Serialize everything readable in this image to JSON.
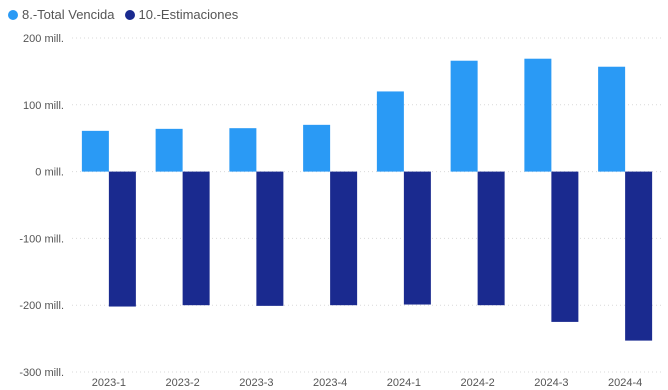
{
  "chart_data": {
    "type": "bar",
    "categories": [
      "2023-1",
      "2023-2",
      "2023-3",
      "2023-4",
      "2024-1",
      "2024-2",
      "2024-3",
      "2024-4"
    ],
    "series": [
      {
        "name": "8.-Total Vencida",
        "color": "#2a9af5",
        "values": [
          61,
          64,
          65,
          70,
          120,
          166,
          169,
          157
        ]
      },
      {
        "name": "10.-Estimaciones",
        "color": "#1a2a8f",
        "values": [
          -202,
          -200,
          -201,
          -200,
          -199,
          -200,
          -225,
          -253
        ]
      }
    ],
    "ylim": [
      -300,
      200
    ],
    "yticks": [
      200,
      100,
      0,
      -100,
      -200,
      -300
    ],
    "ytick_labels": [
      "200 mill.",
      "100 mill.",
      "0 mill.",
      "-100 mill.",
      "-200 mill.",
      "-300 mill."
    ],
    "legend_position": "top-left",
    "grid": true,
    "title": "",
    "xlabel": "",
    "ylabel": ""
  }
}
